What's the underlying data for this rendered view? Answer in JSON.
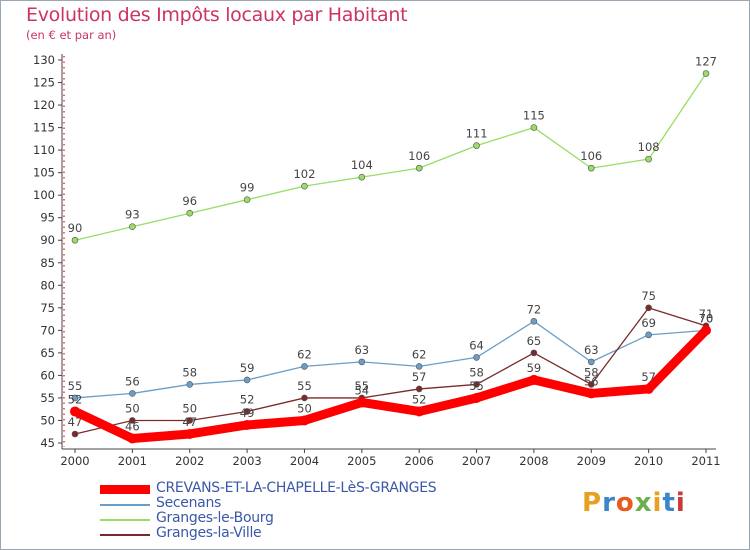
{
  "header": {
    "title": "Evolution des Impôts locaux par Habitant",
    "subtitle": "(en € et par an)"
  },
  "brand": {
    "text": "Proxiti",
    "colors": [
      "#e8a020",
      "#3a86c8",
      "#e85a20",
      "#6ab04c",
      "#e8a020",
      "#3a86c8",
      "#c83a3a"
    ]
  },
  "chart_data": {
    "type": "line",
    "x": [
      "2000",
      "2001",
      "2002",
      "2003",
      "2004",
      "2005",
      "2006",
      "2007",
      "2008",
      "2009",
      "2010",
      "2011"
    ],
    "ylim": [
      45,
      130
    ],
    "yticks": [
      45,
      50,
      55,
      60,
      65,
      70,
      75,
      80,
      85,
      90,
      95,
      100,
      105,
      110,
      115,
      120,
      125,
      130
    ],
    "grid": false,
    "legend_position": "bottom-left",
    "series": [
      {
        "name": "CREVANS-ET-LA-CHAPELLE-LèS-GRANGES",
        "color": "#ff0000",
        "values": [
          52,
          46,
          47,
          49,
          50,
          54,
          52,
          55,
          59,
          56,
          57,
          70
        ]
      },
      {
        "name": "Secenans",
        "color": "#6a9ec8",
        "values": [
          55,
          56,
          58,
          59,
          62,
          63,
          62,
          64,
          72,
          63,
          69,
          70
        ]
      },
      {
        "name": "Granges-le-Bourg",
        "color": "#99dd66",
        "values": [
          90,
          93,
          96,
          99,
          102,
          104,
          106,
          111,
          115,
          106,
          108,
          127
        ]
      },
      {
        "name": "Granges-la-Ville",
        "color": "#7a2a2a",
        "values": [
          47,
          50,
          50,
          52,
          55,
          55,
          57,
          58,
          65,
          58,
          75,
          71
        ]
      }
    ]
  }
}
